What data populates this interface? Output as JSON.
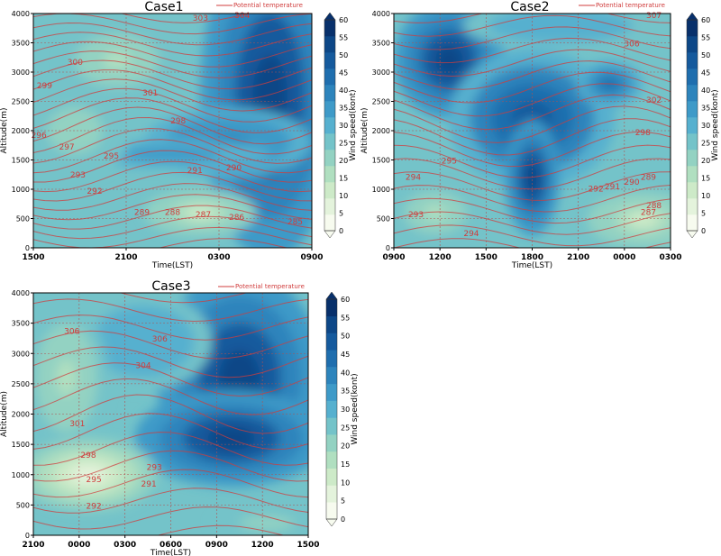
{
  "figure": {
    "colorbar_label": "Wind speed(kont)",
    "colorbar_ticks": [
      "0",
      "5",
      "10",
      "15",
      "20",
      "25",
      "30",
      "35",
      "40",
      "45",
      "50",
      "55",
      "60"
    ],
    "colorbar_colors": [
      "#f7fbef",
      "#e4f3dc",
      "#cdeac8",
      "#b0dfc0",
      "#93d2c2",
      "#74c3c9",
      "#56b0cf",
      "#3e9ac8",
      "#2d84bc",
      "#1f6eae",
      "#155a9d",
      "#0d4787",
      "#08306b"
    ],
    "legend_line_label": "Potential temperature",
    "contour_color": "#d03c3c"
  },
  "chart_data": [
    {
      "type": "heatmap",
      "title": "Case1",
      "xlabel": "Time(LST)",
      "ylabel": "Altitude(m)",
      "xticks": [
        "1500",
        "2100",
        "0300",
        "0900"
      ],
      "yticks": [
        "0",
        "500",
        "1000",
        "1500",
        "2000",
        "2500",
        "3000",
        "3500",
        "4000"
      ],
      "ylim": [
        0,
        4000
      ],
      "contour_labels": [
        "303",
        "304",
        "300",
        "301",
        "299",
        "298",
        "296",
        "297",
        "295",
        "293",
        "292",
        "291",
        "290",
        "289",
        "288",
        "287",
        "286",
        "285"
      ]
    },
    {
      "type": "heatmap",
      "title": "Case2",
      "xlabel": "Time(LST)",
      "ylabel": "Altitude(m)",
      "xticks": [
        "0900",
        "1200",
        "1500",
        "1800",
        "2100",
        "0000",
        "0300"
      ],
      "yticks": [
        "0",
        "500",
        "1000",
        "1500",
        "2000",
        "2500",
        "3000",
        "3500",
        "4000"
      ],
      "ylim": [
        0,
        4000
      ],
      "contour_labels": [
        "307",
        "306",
        "302",
        "298",
        "295",
        "294",
        "293",
        "292",
        "291",
        "290",
        "289",
        "288",
        "287",
        "294"
      ]
    },
    {
      "type": "heatmap",
      "title": "Case3",
      "xlabel": "Time(LST)",
      "ylabel": "Altitude(m)",
      "xticks": [
        "2100",
        "0000",
        "0300",
        "0600",
        "0900",
        "1200",
        "1500"
      ],
      "yticks": [
        "0",
        "500",
        "1000",
        "1500",
        "2000",
        "2500",
        "3000",
        "3500",
        "4000"
      ],
      "ylim": [
        0,
        4000
      ],
      "contour_labels": [
        "306",
        "306",
        "304",
        "301",
        "298",
        "295",
        "293",
        "292",
        "291"
      ]
    }
  ]
}
